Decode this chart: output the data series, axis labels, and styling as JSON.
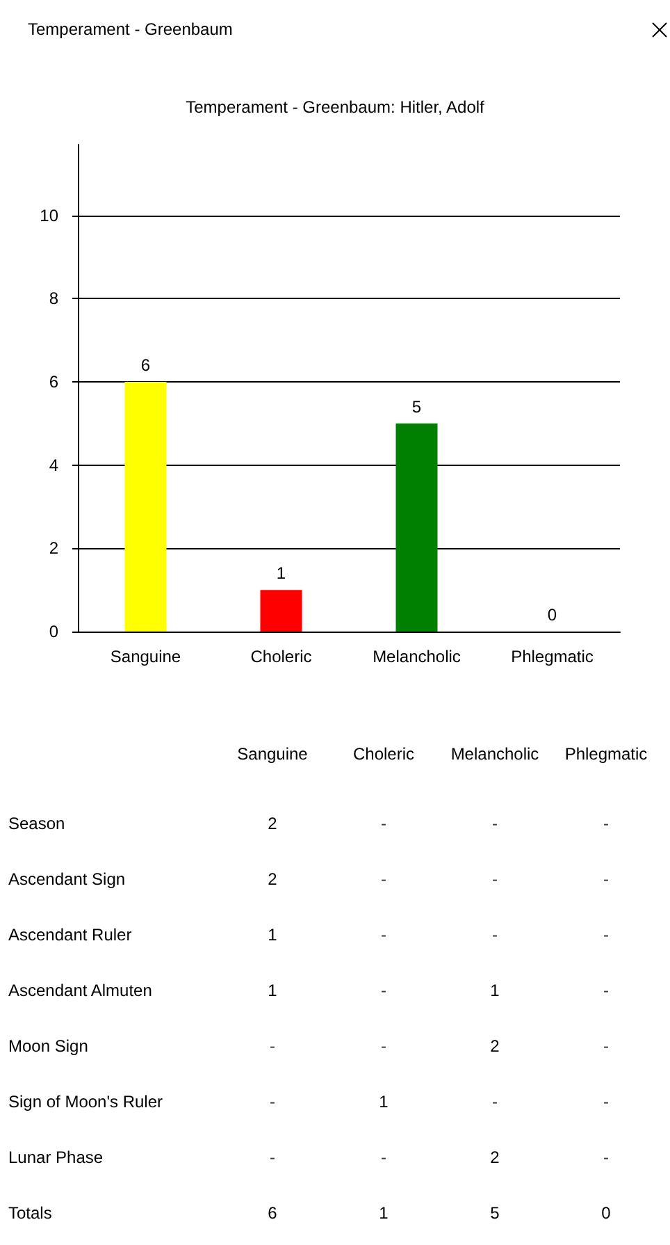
{
  "chart_data": [
    {
      "type": "bar",
      "title": "Temperament - Greenbaum: Hitler, Adolf",
      "annotations": [
        "Temperament - Greenbaum"
      ],
      "categories": [
        "Sanguine",
        "Choleric",
        "Melancholic",
        "Phlegmatic"
      ],
      "values": [
        6,
        1,
        5,
        0
      ],
      "colors": [
        "#ffff00",
        "#ff0000",
        "#008000",
        null
      ],
      "ylim": [
        0,
        11.7
      ],
      "yticks": [
        0,
        2,
        4,
        6,
        8,
        10
      ],
      "grid": "y",
      "data_labels": true
    },
    {
      "type": "heatmap",
      "categories": [
        "Sanguine",
        "Choleric",
        "Melancholic",
        "Phlegmatic"
      ],
      "y_categories": [
        "Season",
        "Ascendant Sign",
        "Ascendant Ruler",
        "Ascendant Almuten",
        "Moon Sign",
        "Sign of Moon's Ruler",
        "Lunar Phase",
        "Totals"
      ],
      "cells": [
        [
          2,
          null,
          null,
          null
        ],
        [
          2,
          null,
          null,
          null
        ],
        [
          1,
          null,
          null,
          null
        ],
        [
          1,
          null,
          1,
          null
        ],
        [
          null,
          null,
          2,
          null
        ],
        [
          null,
          1,
          null,
          null
        ],
        [
          null,
          null,
          2,
          null
        ],
        [
          6,
          1,
          5,
          0
        ]
      ],
      "cell_labels": [
        [
          "2",
          "-",
          "-",
          "-"
        ],
        [
          "2",
          "-",
          "-",
          "-"
        ],
        [
          "1",
          "-",
          "-",
          "-"
        ],
        [
          "1",
          "-",
          "1",
          "-"
        ],
        [
          "-",
          "-",
          "2",
          "-"
        ],
        [
          "-",
          "1",
          "-",
          "-"
        ],
        [
          "-",
          "-",
          "2",
          "-"
        ],
        [
          "6",
          "1",
          "5",
          "0"
        ]
      ]
    }
  ]
}
